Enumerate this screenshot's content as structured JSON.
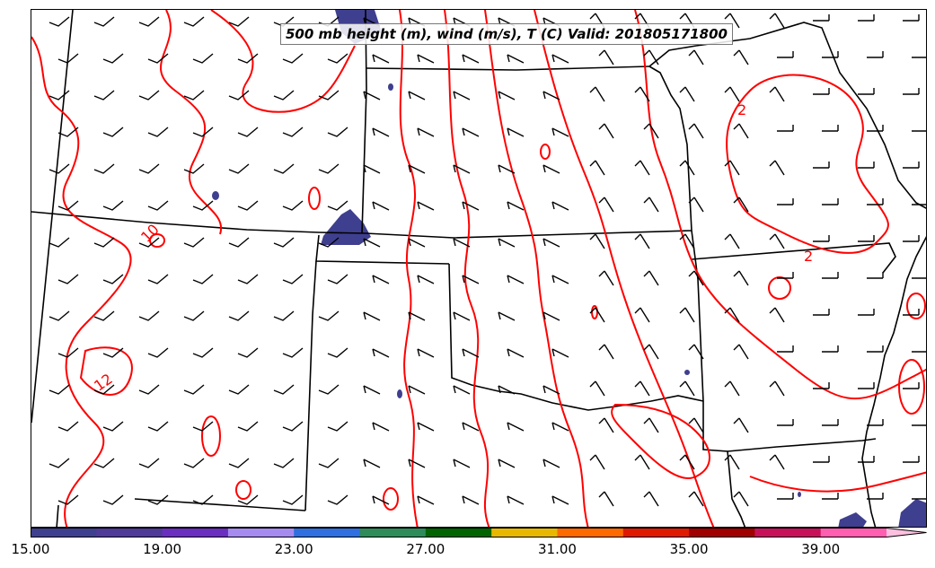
{
  "title": "500 mb height (m), wind (m/s), T (C) Valid: 201805171800",
  "contour_labels": [
    "10",
    "12",
    "2",
    "2"
  ],
  "colorbar": {
    "labels": [
      "15.00",
      "19.00",
      "23.00",
      "27.00",
      "31.00",
      "35.00",
      "39.00"
    ],
    "colors": [
      "#3f3f8f",
      "#4f3a9a",
      "#6a2fc0",
      "#a58bf0",
      "#2f6fe0",
      "#2e8b5a",
      "#006400",
      "#e8b800",
      "#ff6a00",
      "#e01a00",
      "#a00000",
      "#c8105a",
      "#ff5fb0",
      "#ffc0e0"
    ],
    "extend": "max"
  },
  "colors": {
    "temperature_contour": "#ff0000",
    "wind_barb": "#000000",
    "state_border": "#000000",
    "fill_low": "#3f3f8f"
  }
}
